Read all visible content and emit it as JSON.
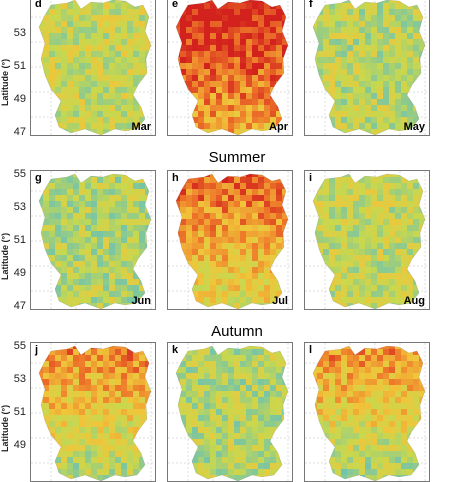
{
  "seasons": [
    {
      "title": "",
      "panels": [
        {
          "letter": "d",
          "month": "Mar",
          "level": 0.42
        },
        {
          "letter": "e",
          "month": "Apr",
          "level": 0.85
        },
        {
          "letter": "f",
          "month": "May",
          "level": 0.38
        }
      ]
    },
    {
      "title": "Summer",
      "panels": [
        {
          "letter": "g",
          "month": "Jun",
          "level": 0.36
        },
        {
          "letter": "h",
          "month": "Jul",
          "level": 0.66
        },
        {
          "letter": "i",
          "month": "Aug",
          "level": 0.4
        }
      ]
    },
    {
      "title": "Autumn",
      "panels": [
        {
          "letter": "j",
          "month": "",
          "level": 0.52
        },
        {
          "letter": "k",
          "month": "",
          "level": 0.36
        },
        {
          "letter": "l",
          "month": "",
          "level": 0.5
        }
      ]
    }
  ],
  "latitude_ticks": [
    "55",
    "53",
    "51",
    "49",
    "47"
  ],
  "y_axis_label": "Latitude (°)",
  "palette": [
    "#3cb4e6",
    "#7dc6a0",
    "#c8d84e",
    "#f0c53a",
    "#ee7a2a",
    "#d3221d"
  ]
}
